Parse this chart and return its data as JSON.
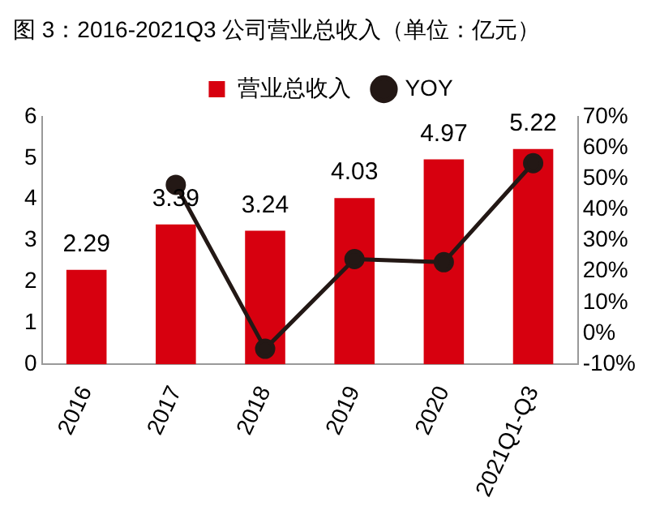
{
  "chart_data": {
    "type": "bar",
    "title": "图 3：2016-2021Q3 公司营业总收入（单位：亿元）",
    "categories": [
      "2016",
      "2017",
      "2018",
      "2019",
      "2020",
      "2021Q1-Q3"
    ],
    "series": [
      {
        "name": "营业总收入",
        "color": "#d7000f",
        "values": [
          2.29,
          3.39,
          3.24,
          4.03,
          4.97,
          5.22
        ],
        "value_labels": [
          "2.29",
          "3.39",
          "3.24",
          "4.03",
          "4.97",
          "5.22"
        ]
      },
      {
        "name": "YOY",
        "type": "line",
        "axis": "y2",
        "color": "#231815",
        "marker": "circle",
        "values": [
          null,
          48,
          -5,
          24,
          23,
          55
        ]
      }
    ],
    "ylim": [
      0,
      6
    ],
    "yticks": [
      0,
      1,
      2,
      3,
      4,
      5,
      6
    ],
    "y2lim": [
      -10,
      70
    ],
    "y2ticks": [
      {
        "value": -10,
        "label": "-10%"
      },
      {
        "value": 0,
        "label": "0%"
      },
      {
        "value": 10,
        "label": "10%"
      },
      {
        "value": 20,
        "label": "20%"
      },
      {
        "value": 30,
        "label": "30%"
      },
      {
        "value": 40,
        "label": "40%"
      },
      {
        "value": 50,
        "label": "50%"
      },
      {
        "value": 60,
        "label": "60%"
      },
      {
        "value": 70,
        "label": "70%"
      }
    ],
    "legend": "top",
    "grid": false
  }
}
